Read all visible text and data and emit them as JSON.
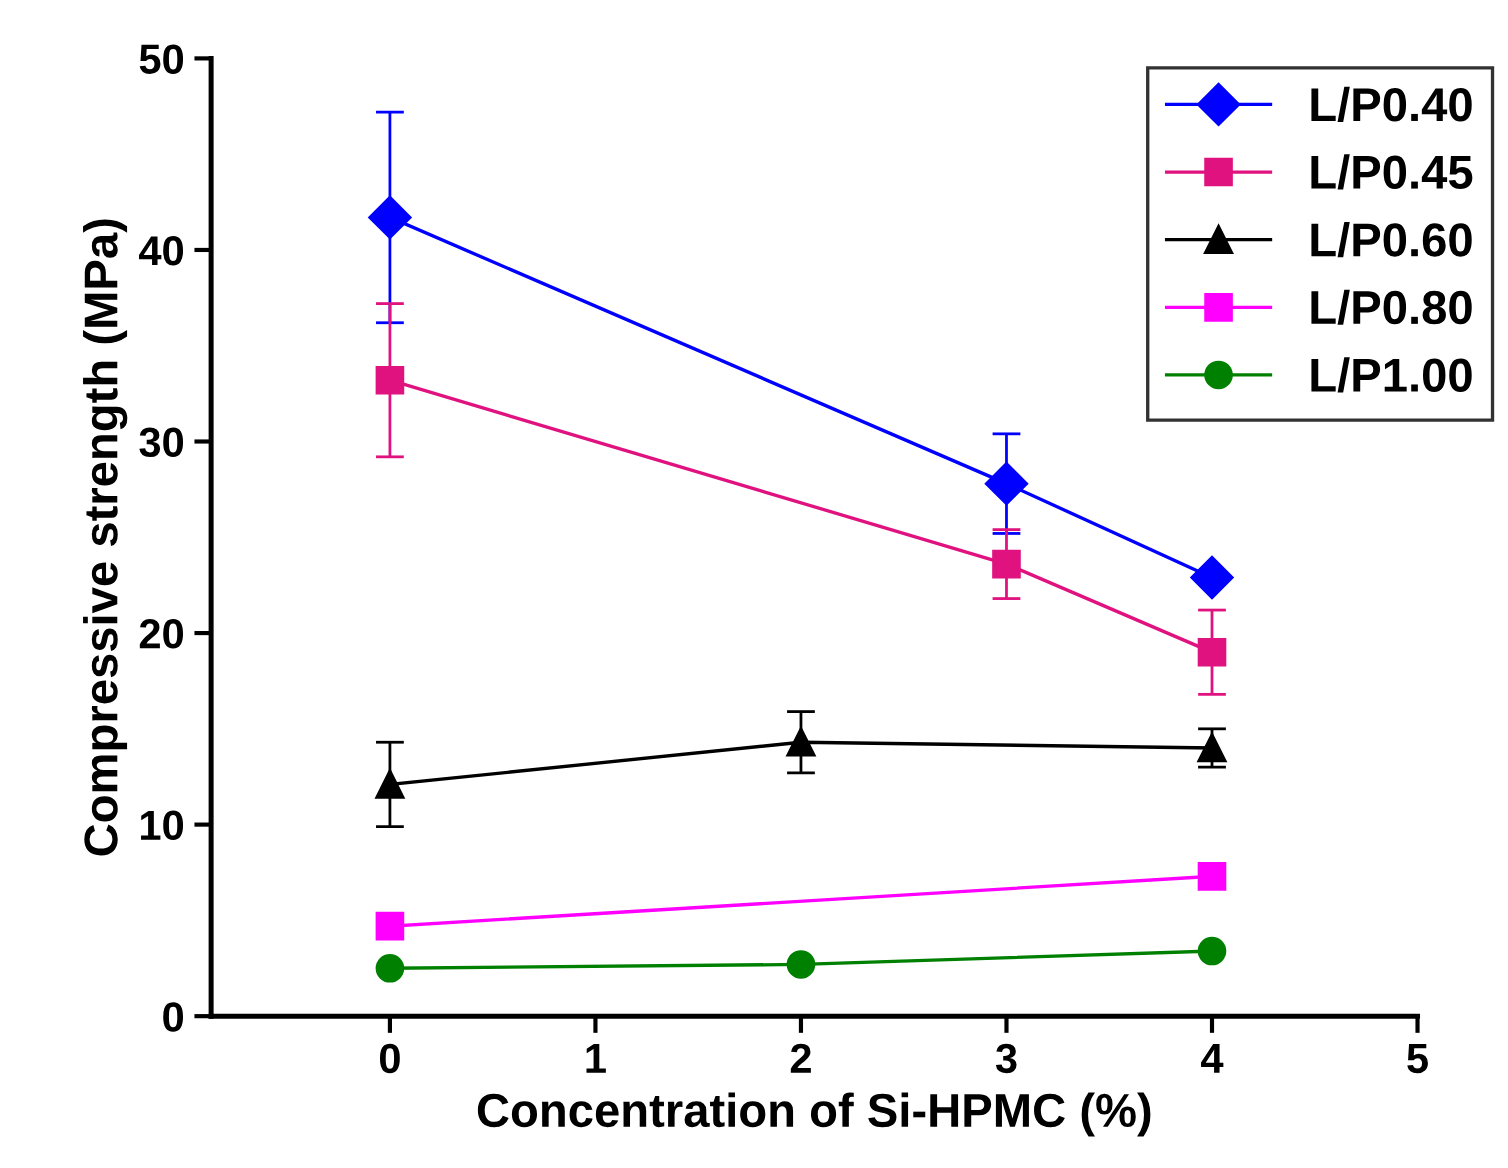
{
  "chart_data": {
    "type": "line",
    "xlabel": "Concentration of Si-HPMC (%)",
    "ylabel": "Compressive strength (MPa)",
    "xlim": [
      -0.87,
      5
    ],
    "xticks": [
      0,
      1,
      2,
      3,
      4,
      5
    ],
    "ylim": [
      0,
      50
    ],
    "yticks": [
      0,
      10,
      20,
      30,
      40,
      50
    ],
    "grid": false,
    "legend": "top right",
    "series": [
      {
        "name": "L/P0.40",
        "color": "#0000ff",
        "marker": "diamond",
        "x": [
          0,
          3,
          4
        ],
        "values": [
          41.7,
          27.8,
          22.9
        ],
        "errors": [
          5.5,
          2.6,
          null
        ]
      },
      {
        "name": "L/P0.45",
        "color": "#e0127f",
        "marker": "square",
        "x": [
          0,
          3,
          4
        ],
        "values": [
          33.2,
          23.6,
          19.0
        ],
        "errors": [
          4.0,
          1.8,
          2.2
        ]
      },
      {
        "name": "L/P0.60",
        "color": "#000000",
        "marker": "triangle",
        "x": [
          0,
          2,
          4
        ],
        "values": [
          12.1,
          14.3,
          14.0
        ],
        "errors": [
          2.2,
          1.6,
          1.0
        ]
      },
      {
        "name": "L/P0.80",
        "color": "#ff00ff",
        "marker": "square",
        "x": [
          0,
          4
        ],
        "values": [
          4.7,
          7.3
        ],
        "errors": [
          null,
          0.6
        ]
      },
      {
        "name": "L/P1.00",
        "color": "#008000",
        "marker": "circle",
        "x": [
          0,
          2,
          4
        ],
        "values": [
          2.5,
          2.7,
          3.4
        ],
        "errors": [
          null,
          null,
          null
        ]
      }
    ]
  }
}
